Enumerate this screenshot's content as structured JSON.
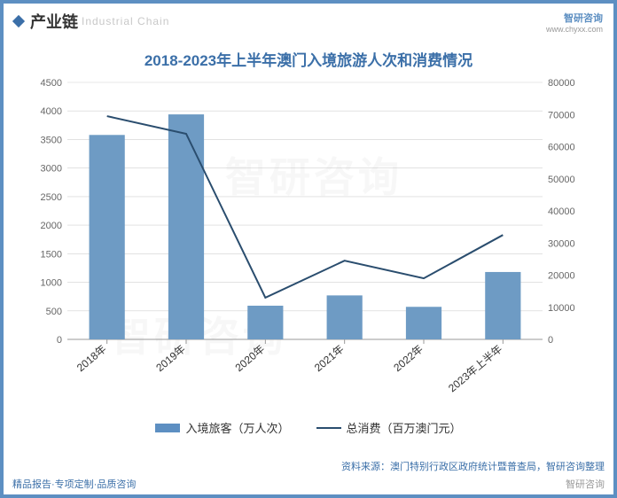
{
  "header": {
    "section_title": "产业链",
    "section_sub": "Industrial Chain",
    "logo_text": "智研咨询",
    "logo_url": "www.chyxx.com"
  },
  "chart": {
    "title": "2018-2023年上半年澳门入境旅游人次和消费情况",
    "type": "bar_line_dual_axis",
    "categories": [
      "2018年",
      "2019年",
      "2020年",
      "2021年",
      "2022年",
      "2023年上半年"
    ],
    "bar_series": {
      "name": "入境旅客（万人次）",
      "values": [
        3580,
        3940,
        590,
        770,
        570,
        1180
      ],
      "color": "#6e9bc4"
    },
    "line_series": {
      "name": "总消费（百万澳门元）",
      "values": [
        69500,
        64000,
        13000,
        24500,
        19000,
        32500
      ],
      "color": "#2a4d6e"
    },
    "y_left": {
      "min": 0,
      "max": 4500,
      "step": 500
    },
    "y_right": {
      "min": 0,
      "max": 80000,
      "step": 10000
    },
    "background": "#ffffff",
    "grid_color": "#d0d0d0",
    "axis_color": "#999999",
    "tick_font_size": 11,
    "label_font_size": 13,
    "line_width": 2,
    "bar_width_ratio": 0.45
  },
  "watermark": "智研咨询",
  "source": "资料来源：澳门特别行政区政府统计暨普查局，智研咨询整理",
  "footer": {
    "left": "精品报告·专项定制·品质咨询",
    "right": "智研咨询"
  }
}
